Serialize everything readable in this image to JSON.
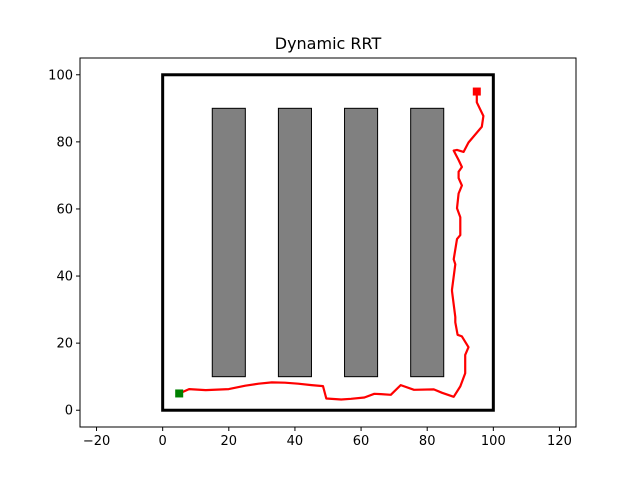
{
  "chart_data": {
    "type": "line",
    "title": "Dynamic RRT",
    "xlabel": "",
    "ylabel": "",
    "xlim": [
      -25,
      125
    ],
    "ylim": [
      -5,
      105
    ],
    "xticks": [
      -20,
      0,
      20,
      40,
      60,
      80,
      100,
      120
    ],
    "yticks": [
      0,
      20,
      40,
      60,
      80,
      100
    ],
    "grid": false,
    "colors": {
      "path": "#ff0000",
      "obstacle_fill": "#808080",
      "obstacle_edge": "#000000",
      "boundary": "#000000",
      "start": "#008000",
      "goal": "#ff0000"
    },
    "boundary": {
      "x": [
        0,
        100
      ],
      "y": [
        0,
        100
      ]
    },
    "obstacles": [
      {
        "x": [
          15,
          25
        ],
        "y": [
          10,
          90
        ]
      },
      {
        "x": [
          35,
          45
        ],
        "y": [
          10,
          90
        ]
      },
      {
        "x": [
          55,
          65
        ],
        "y": [
          10,
          90
        ]
      },
      {
        "x": [
          75,
          85
        ],
        "y": [
          10,
          90
        ]
      }
    ],
    "start": {
      "x": 5,
      "y": 5
    },
    "goal": {
      "x": 95,
      "y": 95
    },
    "path": {
      "x": [
        5,
        8,
        13,
        20,
        25,
        29,
        33,
        37,
        41,
        45,
        48.5,
        49.5,
        54,
        57,
        61,
        64,
        66,
        69,
        72,
        76,
        82,
        84.5,
        88,
        90,
        91.5,
        91.5,
        92.5,
        90.5,
        89.2,
        88.5,
        88.5,
        87.5,
        87.5,
        88.5,
        88,
        89,
        90,
        90,
        89,
        89.5,
        90.5,
        89.5,
        89.5,
        90.5,
        89.5,
        88,
        89,
        91,
        92.5,
        96.5,
        97,
        95,
        95
      ],
      "y": [
        5,
        6.3,
        6,
        6.3,
        7.3,
        7.9,
        8.3,
        8.2,
        7.9,
        7.5,
        7.2,
        3.5,
        3.2,
        3.4,
        3.8,
        4.9,
        4.8,
        4.6,
        7.5,
        6.1,
        6.2,
        5.2,
        4,
        7.1,
        11,
        16.5,
        18.8,
        22,
        22.5,
        26.2,
        27.8,
        35.5,
        36,
        43.5,
        45,
        51,
        52.2,
        57.5,
        60.2,
        64.6,
        67,
        69.2,
        71.1,
        72.5,
        74.6,
        77.4,
        77.6,
        77,
        79.8,
        84.5,
        87.7,
        91.8,
        95
      ]
    }
  }
}
